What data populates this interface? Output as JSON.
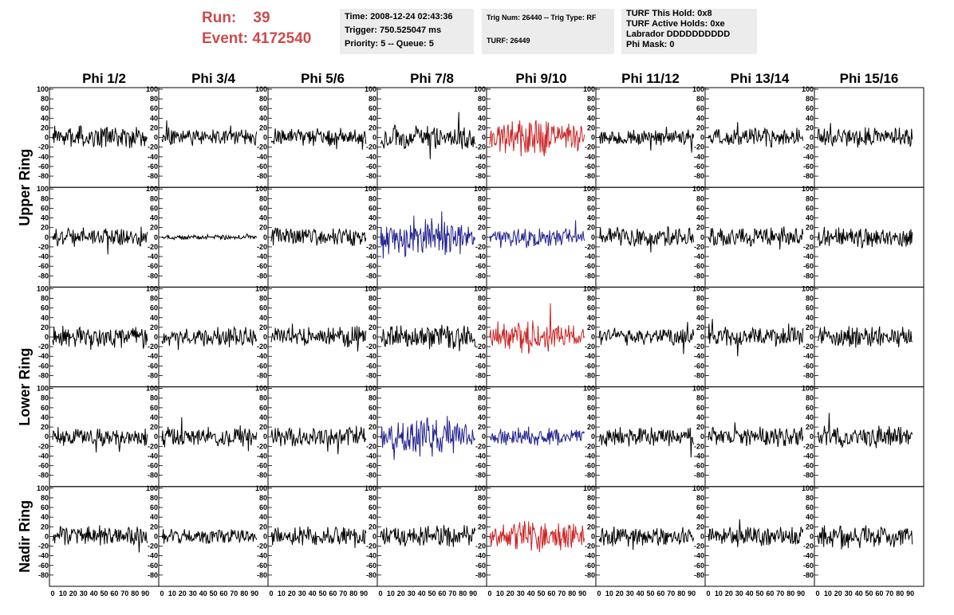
{
  "header": {
    "run_label": "Run:",
    "run_value": "39",
    "event_label": "Event:",
    "event_value": "4172540"
  },
  "info_time": {
    "time": "Time: 2008-12-24 02:43:36",
    "trigger": "Trigger: 750.525047 ms",
    "priority": "Priority: 5 -- Queue: 5"
  },
  "info_trig": {
    "trig": "Trig Num: 26440 -- Trig Type: RF",
    "turf": "TURF: 26449"
  },
  "info_turf": {
    "this_hold": "TURF This Hold: 0x8",
    "active_holds": "TURF Active Holds: 0xe",
    "labrador": "Labrador DDDDDDDDDD",
    "phi_mask": "Phi Mask: 0"
  },
  "columns": [
    "Phi 1/2",
    "Phi 3/4",
    "Phi 5/6",
    "Phi 7/8",
    "Phi 9/10",
    "Phi 11/12",
    "Phi 13/14",
    "Phi 15/16"
  ],
  "ring_labels": [
    "Upper Ring",
    "Lower Ring",
    "Nadir Ring"
  ],
  "colors": {
    "normal": "#000000",
    "highlight_red": "#cc2222",
    "highlight_blue": "#22228f"
  },
  "chart_data": {
    "type": "line",
    "layout": "grid of waveform panels, 5 rows x 8 columns",
    "ylim": [
      -100,
      100
    ],
    "xlim": [
      0,
      100
    ],
    "y_ticks": [
      100,
      80,
      60,
      40,
      20,
      0,
      -20,
      -40,
      -60,
      -80
    ],
    "x_ticks": [
      "0",
      "10",
      "20",
      "30",
      "40",
      "50",
      "60",
      "70",
      "80",
      "90"
    ],
    "grid": false,
    "row_groups": [
      {
        "label": "Upper Ring",
        "rows": [
          0,
          1
        ]
      },
      {
        "label": "Lower Ring",
        "rows": [
          2,
          3
        ]
      },
      {
        "label": "Nadir Ring",
        "rows": [
          4
        ]
      }
    ],
    "panels": [
      [
        {
          "amp": 18,
          "color": "black"
        },
        {
          "amp": 14,
          "color": "black"
        },
        {
          "amp": 15,
          "color": "black"
        },
        {
          "amp": 20,
          "color": "black"
        },
        {
          "amp": 28,
          "color": "red"
        },
        {
          "amp": 13,
          "color": "black"
        },
        {
          "amp": 15,
          "color": "black"
        },
        {
          "amp": 16,
          "color": "black"
        }
      ],
      [
        {
          "amp": 16,
          "color": "black"
        },
        {
          "amp": 4,
          "color": "black"
        },
        {
          "amp": 16,
          "color": "black"
        },
        {
          "amp": 30,
          "color": "blue"
        },
        {
          "amp": 15,
          "color": "blue"
        },
        {
          "amp": 16,
          "color": "black"
        },
        {
          "amp": 16,
          "color": "black"
        },
        {
          "amp": 18,
          "color": "black"
        }
      ],
      [
        {
          "amp": 18,
          "color": "black"
        },
        {
          "amp": 16,
          "color": "black"
        },
        {
          "amp": 17,
          "color": "black"
        },
        {
          "amp": 20,
          "color": "black"
        },
        {
          "amp": 24,
          "color": "red"
        },
        {
          "amp": 15,
          "color": "black"
        },
        {
          "amp": 15,
          "color": "black"
        },
        {
          "amp": 18,
          "color": "black"
        }
      ],
      [
        {
          "amp": 15,
          "color": "black"
        },
        {
          "amp": 16,
          "color": "black"
        },
        {
          "amp": 17,
          "color": "black"
        },
        {
          "amp": 28,
          "color": "blue"
        },
        {
          "amp": 14,
          "color": "blue"
        },
        {
          "amp": 16,
          "color": "black"
        },
        {
          "amp": 17,
          "color": "black"
        },
        {
          "amp": 18,
          "color": "black"
        }
      ],
      [
        {
          "amp": 17,
          "color": "black"
        },
        {
          "amp": 12,
          "color": "black"
        },
        {
          "amp": 17,
          "color": "black"
        },
        {
          "amp": 18,
          "color": "black"
        },
        {
          "amp": 24,
          "color": "red"
        },
        {
          "amp": 16,
          "color": "black"
        },
        {
          "amp": 17,
          "color": "black"
        },
        {
          "amp": 18,
          "color": "black"
        }
      ]
    ]
  }
}
